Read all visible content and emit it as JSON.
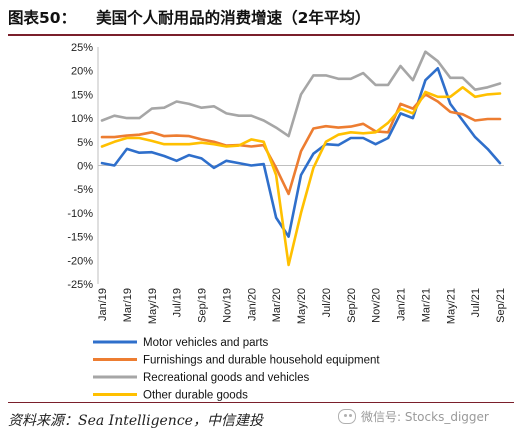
{
  "header": {
    "figure_label": "图表50：",
    "title": "美国个人耐用品的消费增速（2年平均）"
  },
  "footer": {
    "source": "资料来源：Sea Intelligence，中信建投",
    "watermark": "微信号: Stocks_digger"
  },
  "chart_data": {
    "type": "line",
    "ylim": [
      -25,
      25
    ],
    "yticks": [
      "25%",
      "20%",
      "15%",
      "10%",
      "5%",
      "0%",
      "-5%",
      "-10%",
      "-15%",
      "-20%",
      "-25%"
    ],
    "x": [
      "Jan/19",
      "Feb/19",
      "Mar/19",
      "Apr/19",
      "May/19",
      "Jun/19",
      "Jul/19",
      "Aug/19",
      "Sep/19",
      "Oct/19",
      "Nov/19",
      "Dec/19",
      "Jan/20",
      "Feb/20",
      "Mar/20",
      "Apr/20",
      "May/20",
      "Jun/20",
      "Jul/20",
      "Aug/20",
      "Sep/20",
      "Oct/20",
      "Nov/20",
      "Dec/20",
      "Jan/21",
      "Feb/21",
      "Mar/21",
      "Apr/21",
      "May/21",
      "Jun/21",
      "Jul/21",
      "Aug/21",
      "Sep/21"
    ],
    "x_tick_labels": [
      "Jan/19",
      "Mar/19",
      "May/19",
      "Jul/19",
      "Sep/19",
      "Nov/19",
      "Jan/20",
      "Mar/20",
      "May/20",
      "Jul/20",
      "Sep/20",
      "Nov/20",
      "Jan/21",
      "Mar/21",
      "May/21",
      "Jul/21",
      "Sep/21"
    ],
    "legend_placement": "bottom",
    "grid": false,
    "series": [
      {
        "name": "Motor vehicles and parts",
        "color": "#2f6fcb",
        "values": [
          0.5,
          0,
          3.5,
          2.7,
          2.8,
          2,
          1,
          2.2,
          1.5,
          -0.5,
          1,
          0.5,
          0,
          0.3,
          -11,
          -15,
          -2,
          2.5,
          4.5,
          4.3,
          5.8,
          5.8,
          4.5,
          5.8,
          11,
          10,
          18,
          20.5,
          13,
          9.5,
          6,
          3.5,
          0.5
        ]
      },
      {
        "name": "Furnishings and durable household equipment",
        "color": "#ed7d31",
        "values": [
          6,
          6,
          6.3,
          6.5,
          7,
          6.2,
          6.3,
          6.2,
          5.5,
          5,
          4.2,
          4.3,
          4,
          4.3,
          -0.5,
          -6,
          3,
          7.8,
          8.3,
          8,
          8.2,
          8.8,
          7.2,
          7,
          13,
          12,
          15,
          13.5,
          11.3,
          10.8,
          9.5,
          9.8,
          9.8
        ]
      },
      {
        "name": "Recreational goods and vehicles",
        "color": "#a6a6a6",
        "values": [
          9.5,
          10.5,
          10,
          10,
          12,
          12.2,
          13.5,
          13,
          12.2,
          12.5,
          11,
          10.5,
          10.5,
          9.5,
          8,
          6.2,
          15,
          19,
          19,
          18.3,
          18.3,
          19.5,
          17,
          17,
          21,
          18,
          24,
          22,
          18.5,
          18.5,
          16,
          16.5,
          17.3
        ]
      },
      {
        "name": "Other durable goods",
        "color": "#ffc000",
        "values": [
          4,
          5,
          5.8,
          5.8,
          5.2,
          4.5,
          4.5,
          4.5,
          4.8,
          4.5,
          4,
          4.2,
          5.5,
          5,
          -2,
          -21,
          -10,
          -0.5,
          5,
          6.5,
          7,
          6.8,
          7,
          9,
          12,
          11,
          15.5,
          14.5,
          14.5,
          16.5,
          14.5,
          15,
          15.2
        ]
      }
    ]
  }
}
